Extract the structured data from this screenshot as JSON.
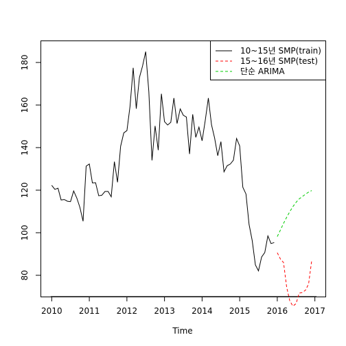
{
  "chart_data": {
    "type": "line",
    "title": "",
    "xlabel": "Time",
    "ylabel": "",
    "xlim": [
      2009.72,
      2017.28
    ],
    "ylim": [
      70.0,
      190.0
    ],
    "x_ticks": [
      2010,
      2011,
      2012,
      2013,
      2014,
      2015,
      2016,
      2017
    ],
    "y_ticks": [
      80,
      100,
      120,
      140,
      160,
      180
    ],
    "grid": false,
    "legend_position": "top-right",
    "series": [
      {
        "name": "10~15년 SMP(train)",
        "color": "#000000",
        "dash": "solid",
        "x": [
          2010.0,
          2010.083,
          2010.167,
          2010.25,
          2010.333,
          2010.417,
          2010.5,
          2010.583,
          2010.667,
          2010.75,
          2010.833,
          2010.917,
          2011.0,
          2011.083,
          2011.167,
          2011.25,
          2011.333,
          2011.417,
          2011.5,
          2011.583,
          2011.667,
          2011.75,
          2011.833,
          2011.917,
          2012.0,
          2012.083,
          2012.167,
          2012.25,
          2012.333,
          2012.417,
          2012.5,
          2012.583,
          2012.667,
          2012.75,
          2012.833,
          2012.917,
          2013.0,
          2013.083,
          2013.167,
          2013.25,
          2013.333,
          2013.417,
          2013.5,
          2013.583,
          2013.667,
          2013.75,
          2013.833,
          2013.917,
          2014.0,
          2014.083,
          2014.167,
          2014.25,
          2014.333,
          2014.417,
          2014.5,
          2014.583,
          2014.667,
          2014.75,
          2014.833,
          2014.917,
          2015.0,
          2015.083,
          2015.167,
          2015.25,
          2015.333,
          2015.417,
          2015.5,
          2015.583,
          2015.667,
          2015.75,
          2015.833,
          2015.917
        ],
        "values": [
          122.3,
          120.4,
          120.9,
          115.4,
          115.6,
          114.8,
          114.6,
          119.6,
          116.3,
          111.9,
          105.4,
          131.3,
          132.3,
          123.4,
          123.5,
          117.4,
          117.6,
          119.4,
          119.4,
          116.9,
          133.4,
          123.7,
          140.6,
          146.9,
          148.0,
          159.4,
          177.5,
          158.3,
          172.9,
          178.4,
          185.1,
          166.3,
          134.0,
          150.2,
          138.8,
          165.3,
          152.2,
          150.6,
          151.9,
          163.3,
          151.3,
          158.2,
          155.2,
          154.4,
          137.0,
          155.6,
          144.8,
          149.6,
          143.2,
          152.6,
          163.3,
          150.7,
          144.5,
          136.2,
          142.8,
          128.6,
          131.5,
          132.3,
          134.1,
          144.3,
          140.8,
          121.4,
          118.2,
          103.9,
          96.3,
          84.9,
          82.1,
          88.6,
          90.7,
          98.5,
          94.9,
          95.4
        ]
      },
      {
        "name": "15~16년 SMP(test)",
        "color": "#ff0000",
        "dash": "dashed",
        "x": [
          2016.0,
          2016.083,
          2016.167,
          2016.25,
          2016.333,
          2016.417,
          2016.5,
          2016.583,
          2016.667,
          2016.75,
          2016.833,
          2016.917
        ],
        "values": [
          90.6,
          87.6,
          86.0,
          74.4,
          68.0,
          65.5,
          66.7,
          71.6,
          71.9,
          73.0,
          75.9,
          87.1
        ]
      },
      {
        "name": "단순 ARIMA",
        "color": "#00cc00",
        "dash": "dashed",
        "x": [
          2016.0,
          2016.083,
          2016.167,
          2016.25,
          2016.333,
          2016.417,
          2016.5,
          2016.583,
          2016.667,
          2016.75,
          2016.833,
          2016.917
        ],
        "values": [
          98.2,
          101.3,
          104.4,
          107.3,
          109.9,
          112.3,
          114.3,
          115.9,
          117.0,
          118.1,
          119.1,
          119.8
        ]
      }
    ]
  }
}
